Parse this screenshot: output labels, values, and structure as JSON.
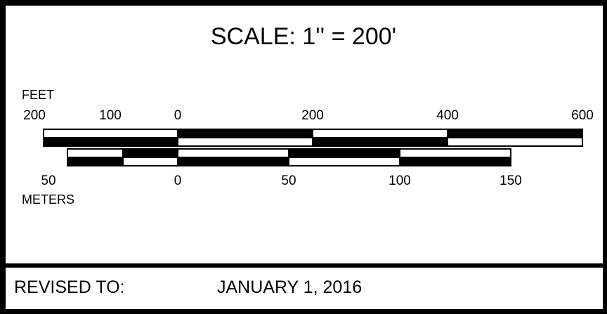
{
  "title": "SCALE: 1'' = 200'",
  "feet": {
    "label": "FEET",
    "ticks": [
      "200",
      "100",
      "0",
      "200",
      "400",
      "600"
    ]
  },
  "meters": {
    "label": "METERS",
    "ticks": [
      "50",
      "0",
      "50",
      "100",
      "150"
    ]
  },
  "revision": {
    "label": "REVISED TO:",
    "date": "JANUARY 1, 2016"
  }
}
